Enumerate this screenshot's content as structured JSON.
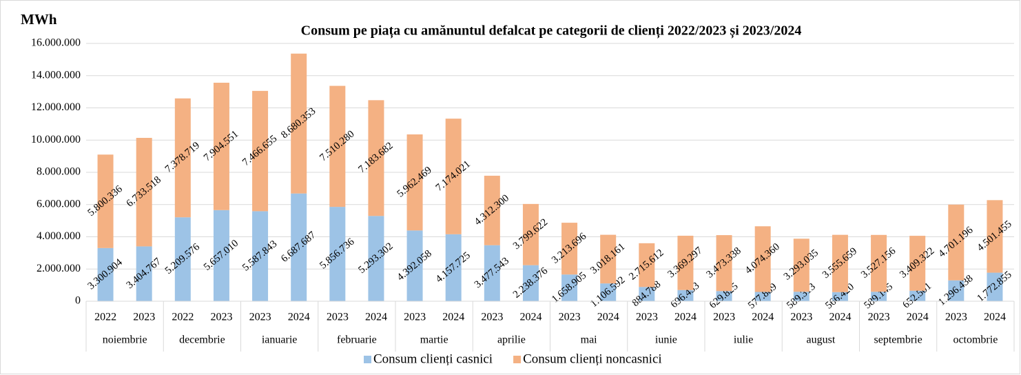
{
  "chart_data": {
    "type": "stacked_bar",
    "title": "Consum pe piața cu amănuntul defalcat pe categorii de clienți 2022/2023 și 2023/2024",
    "y_label": "MWh",
    "categories": [
      "2022",
      "2023",
      "2022",
      "2023",
      "2023",
      "2024",
      "2023",
      "2024",
      "2023",
      "2024",
      "2023",
      "2024",
      "2023",
      "2024",
      "2023",
      "2024",
      "2023",
      "2024",
      "2023",
      "2024",
      "2023",
      "2024",
      "2023",
      "2024"
    ],
    "groups": [
      "noiembrie",
      "decembrie",
      "ianuarie",
      "februarie",
      "martie",
      "aprilie",
      "mai",
      "iunie",
      "iulie",
      "august",
      "septembrie",
      "octombrie"
    ],
    "series": [
      {
        "name": "Consum clienți casnici",
        "color": "#9dc3e6",
        "values": [
          3300904,
          3404767,
          5209576,
          5657010,
          5587843,
          6687687,
          5856736,
          5293302,
          4392058,
          4157725,
          3477543,
          2238376,
          1658905,
          1106592,
          884788,
          696453,
          629825,
          577889,
          589313,
          566420,
          589145,
          652501,
          1296438,
          1772855
        ],
        "value_labels": [
          "3.300.904",
          "3.404.767",
          "5.209.576",
          "5.657.010",
          "5.587.843",
          "6.687.687",
          "5.856.736",
          "5.293.302",
          "4.392.058",
          "4.157.725",
          "3.477.543",
          "2.238.376",
          "1.658.905",
          "1.106.592",
          "884.788",
          "696.453",
          "629.825",
          "577.889",
          "589.313",
          "566.420",
          "589.145",
          "652.501",
          "1.296.438",
          "1.772.855"
        ]
      },
      {
        "name": "Consum clienți noncasnici",
        "color": "#f4b183",
        "values": [
          5800336,
          6733518,
          7378719,
          7904551,
          7466655,
          8680353,
          7510280,
          7183682,
          5962469,
          7174021,
          4312300,
          3799622,
          3213696,
          3018161,
          2715612,
          3369297,
          3473338,
          4074360,
          3293035,
          3555659,
          3527156,
          3409322,
          4701196,
          4501455
        ],
        "value_labels": [
          "5.800.336",
          "6.733.518",
          "7.378.719",
          "7.904.551",
          "7.466.655",
          "8.680.353",
          "7.510.280",
          "7.183.682",
          "5.962.469",
          "7.174.021",
          "4.312.300",
          "3.799.622",
          "3.213.696",
          "3.018.161",
          "2.715.612",
          "3.369.297",
          "3.473.338",
          "4.074.360",
          "3.293.035",
          "3.555.659",
          "3.527.156",
          "3.409.322",
          "4.701.196",
          "4.501.455"
        ]
      }
    ],
    "ylim": [
      0,
      16000000
    ],
    "yticks": [
      0,
      {
        "value": 2000000,
        "label": "2.000.000"
      },
      {
        "value": 4000000,
        "label": "4.000.000"
      },
      {
        "value": 6000000,
        "label": "6.000.000"
      },
      {
        "value": 8000000,
        "label": "8.000.000"
      },
      {
        "value": 10000000,
        "label": "10.000.000"
      },
      {
        "value": 12000000,
        "label": "12.000.000"
      },
      {
        "value": 14000000,
        "label": "14.000.000"
      },
      {
        "value": 16000000,
        "label": "16.000.000"
      }
    ],
    "grid": true,
    "legend": "bottom"
  }
}
